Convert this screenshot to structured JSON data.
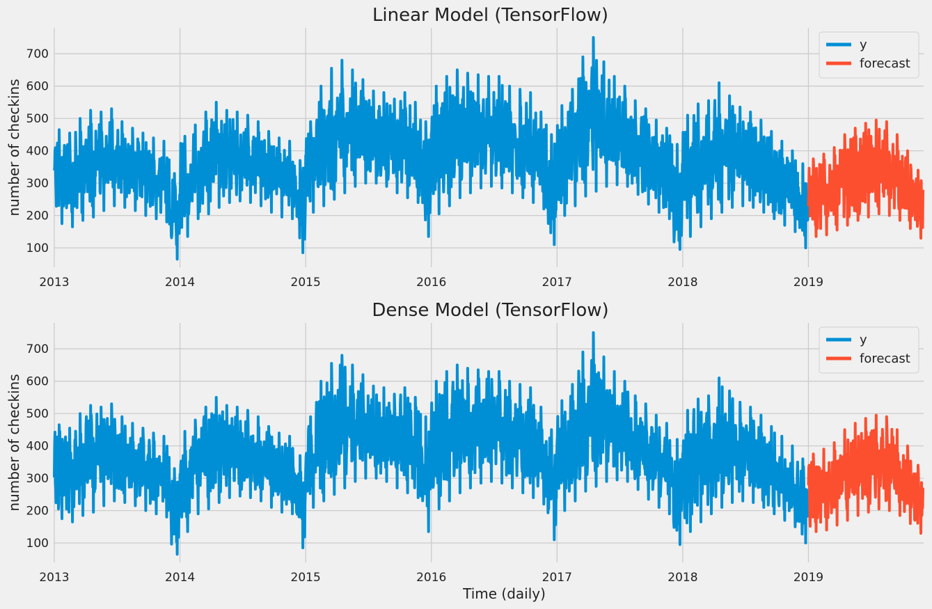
{
  "figure": {
    "xlabel": "Time (daily)"
  },
  "chart_data": [
    {
      "type": "line",
      "title": "Linear Model (TensorFlow)",
      "xlabel": "",
      "ylabel": "number of checkins",
      "x_ticks": [
        "2013",
        "2014",
        "2015",
        "2016",
        "2017",
        "2018",
        "2019"
      ],
      "y_ticks": [
        100,
        200,
        300,
        400,
        500,
        600,
        700
      ],
      "xlim": [
        "2013-01-01",
        "2019-12-01"
      ],
      "ylim": [
        40,
        780
      ],
      "grid": true,
      "legend": "top-right",
      "series": [
        {
          "name": "y",
          "color": "#008fd5",
          "x": [
            "2013-01",
            "2013-02",
            "2013-03",
            "2013-04",
            "2013-05",
            "2013-06",
            "2013-07",
            "2013-08",
            "2013-09",
            "2013-10",
            "2013-11",
            "2013-12",
            "2014-01",
            "2014-02",
            "2014-03",
            "2014-04",
            "2014-05",
            "2014-06",
            "2014-07",
            "2014-08",
            "2014-09",
            "2014-10",
            "2014-11",
            "2014-12",
            "2015-01",
            "2015-02",
            "2015-03",
            "2015-04",
            "2015-05",
            "2015-06",
            "2015-07",
            "2015-08",
            "2015-09",
            "2015-10",
            "2015-11",
            "2015-12",
            "2016-01",
            "2016-02",
            "2016-03",
            "2016-04",
            "2016-05",
            "2016-06",
            "2016-07",
            "2016-08",
            "2016-09",
            "2016-10",
            "2016-11",
            "2016-12",
            "2017-01",
            "2017-02",
            "2017-03",
            "2017-04",
            "2017-05",
            "2017-06",
            "2017-07",
            "2017-08",
            "2017-09",
            "2017-10",
            "2017-11",
            "2017-12",
            "2018-01",
            "2018-02",
            "2018-03",
            "2018-04",
            "2018-05",
            "2018-06",
            "2018-07",
            "2018-08",
            "2018-09",
            "2018-10",
            "2018-11",
            "2018-12"
          ],
          "min": [
            175,
            165,
            185,
            195,
            215,
            230,
            225,
            215,
            200,
            190,
            180,
            65,
            135,
            190,
            205,
            225,
            240,
            245,
            240,
            230,
            210,
            195,
            190,
            85,
            210,
            230,
            250,
            270,
            290,
            300,
            300,
            290,
            270,
            255,
            240,
            135,
            205,
            230,
            255,
            270,
            285,
            290,
            285,
            270,
            255,
            240,
            220,
            110,
            200,
            230,
            260,
            275,
            290,
            295,
            290,
            265,
            235,
            210,
            190,
            95,
            135,
            165,
            190,
            210,
            225,
            230,
            225,
            210,
            190,
            170,
            150,
            100
          ],
          "max": [
            465,
            455,
            500,
            525,
            520,
            530,
            490,
            470,
            455,
            440,
            430,
            330,
            445,
            480,
            520,
            550,
            525,
            520,
            510,
            490,
            460,
            440,
            430,
            370,
            490,
            600,
            655,
            680,
            650,
            620,
            585,
            580,
            560,
            580,
            550,
            490,
            600,
            630,
            650,
            640,
            635,
            630,
            630,
            600,
            590,
            580,
            520,
            450,
            540,
            590,
            690,
            750,
            675,
            630,
            600,
            555,
            530,
            495,
            470,
            420,
            510,
            545,
            555,
            610,
            570,
            535,
            520,
            495,
            460,
            430,
            400,
            360
          ]
        },
        {
          "name": "forecast",
          "color": "#fc4f30",
          "x": [
            "2019-01",
            "2019-02",
            "2019-03",
            "2019-04",
            "2019-05",
            "2019-06",
            "2019-07",
            "2019-08",
            "2019-09",
            "2019-10",
            "2019-11"
          ],
          "min": [
            135,
            140,
            155,
            170,
            185,
            195,
            205,
            200,
            185,
            160,
            130
          ],
          "max": [
            375,
            390,
            410,
            450,
            470,
            485,
            495,
            490,
            450,
            400,
            340
          ]
        }
      ]
    },
    {
      "type": "line",
      "title": "Dense Model (TensorFlow)",
      "xlabel": "Time (daily)",
      "ylabel": "number of checkins",
      "x_ticks": [
        "2013",
        "2014",
        "2015",
        "2016",
        "2017",
        "2018",
        "2019"
      ],
      "y_ticks": [
        100,
        200,
        300,
        400,
        500,
        600,
        700
      ],
      "xlim": [
        "2013-01-01",
        "2019-12-01"
      ],
      "ylim": [
        40,
        780
      ],
      "grid": true,
      "legend": "top-right",
      "series": [
        {
          "name": "y",
          "color": "#008fd5",
          "x": [
            "2013-01",
            "2013-02",
            "2013-03",
            "2013-04",
            "2013-05",
            "2013-06",
            "2013-07",
            "2013-08",
            "2013-09",
            "2013-10",
            "2013-11",
            "2013-12",
            "2014-01",
            "2014-02",
            "2014-03",
            "2014-04",
            "2014-05",
            "2014-06",
            "2014-07",
            "2014-08",
            "2014-09",
            "2014-10",
            "2014-11",
            "2014-12",
            "2015-01",
            "2015-02",
            "2015-03",
            "2015-04",
            "2015-05",
            "2015-06",
            "2015-07",
            "2015-08",
            "2015-09",
            "2015-10",
            "2015-11",
            "2015-12",
            "2016-01",
            "2016-02",
            "2016-03",
            "2016-04",
            "2016-05",
            "2016-06",
            "2016-07",
            "2016-08",
            "2016-09",
            "2016-10",
            "2016-11",
            "2016-12",
            "2017-01",
            "2017-02",
            "2017-03",
            "2017-04",
            "2017-05",
            "2017-06",
            "2017-07",
            "2017-08",
            "2017-09",
            "2017-10",
            "2017-11",
            "2017-12",
            "2018-01",
            "2018-02",
            "2018-03",
            "2018-04",
            "2018-05",
            "2018-06",
            "2018-07",
            "2018-08",
            "2018-09",
            "2018-10",
            "2018-11",
            "2018-12"
          ],
          "min": [
            175,
            165,
            185,
            195,
            215,
            230,
            225,
            215,
            200,
            190,
            180,
            65,
            135,
            190,
            205,
            225,
            240,
            245,
            240,
            230,
            210,
            195,
            190,
            85,
            210,
            230,
            250,
            270,
            290,
            300,
            300,
            290,
            270,
            255,
            240,
            135,
            205,
            230,
            255,
            270,
            285,
            290,
            285,
            270,
            255,
            240,
            220,
            110,
            200,
            230,
            260,
            275,
            290,
            295,
            290,
            265,
            235,
            210,
            190,
            95,
            135,
            165,
            190,
            210,
            225,
            230,
            225,
            210,
            190,
            170,
            150,
            100
          ],
          "max": [
            465,
            455,
            500,
            525,
            520,
            530,
            490,
            470,
            455,
            440,
            430,
            330,
            445,
            480,
            520,
            550,
            525,
            520,
            510,
            490,
            460,
            440,
            430,
            370,
            490,
            600,
            655,
            680,
            650,
            620,
            585,
            580,
            560,
            580,
            550,
            490,
            600,
            630,
            650,
            640,
            635,
            630,
            630,
            600,
            590,
            580,
            520,
            450,
            540,
            590,
            690,
            750,
            675,
            630,
            600,
            555,
            530,
            495,
            470,
            420,
            510,
            545,
            555,
            610,
            570,
            535,
            520,
            495,
            460,
            430,
            400,
            360
          ]
        },
        {
          "name": "forecast",
          "color": "#fc4f30",
          "x": [
            "2019-01",
            "2019-02",
            "2019-03",
            "2019-04",
            "2019-05",
            "2019-06",
            "2019-07",
            "2019-08",
            "2019-09",
            "2019-10",
            "2019-11"
          ],
          "min": [
            135,
            140,
            155,
            170,
            185,
            195,
            205,
            200,
            185,
            160,
            130
          ],
          "max": [
            375,
            390,
            410,
            450,
            470,
            485,
            495,
            490,
            450,
            400,
            340
          ]
        }
      ]
    }
  ]
}
